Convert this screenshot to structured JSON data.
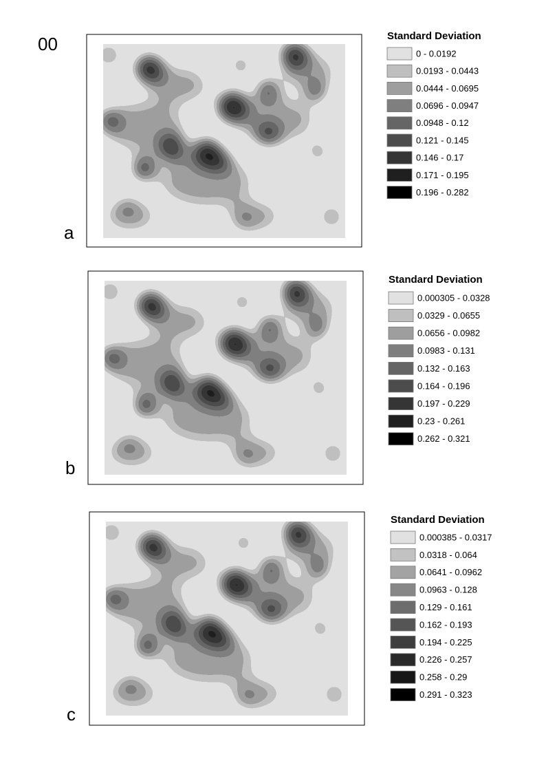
{
  "figure_label": "00",
  "panels": [
    {
      "label": "a",
      "legend_title": "Standard Deviation",
      "legend_items": [
        "0 - 0.0192",
        "0.0193 - 0.0443",
        "0.0444 - 0.0695",
        "0.0696 - 0.0947",
        "0.0948 - 0.12",
        "0.121 - 0.145",
        "0.146 - 0.17",
        "0.171 - 0.195",
        "0.196 - 0.282"
      ],
      "legend_colors": [
        "#e1e1e1",
        "#bfbfbf",
        "#9e9e9e",
        "#7f7f7f",
        "#656565",
        "#4c4c4c",
        "#353535",
        "#1f1f1f",
        "#000000"
      ]
    },
    {
      "label": "b",
      "legend_title": "Standard Deviation",
      "legend_items": [
        "0.000305 - 0.0328",
        "0.0329 - 0.0655",
        "0.0656 - 0.0982",
        "0.0983 - 0.131",
        "0.132 - 0.163",
        "0.164 - 0.196",
        "0.197 - 0.229",
        "0.23 - 0.261",
        "0.262 - 0.321"
      ],
      "legend_colors": [
        "#e1e1e1",
        "#bfbfbf",
        "#9e9e9e",
        "#7f7f7f",
        "#656565",
        "#4c4c4c",
        "#353535",
        "#1f1f1f",
        "#000000"
      ]
    },
    {
      "label": "c",
      "legend_title": "Standard Deviation",
      "legend_items": [
        "0.000385 - 0.0317",
        "0.0318 - 0.064",
        "0.0641 - 0.0962",
        "0.0963 - 0.128",
        "0.129 - 0.161",
        "0.162 - 0.193",
        "0.194 - 0.225",
        "0.226 - 0.257",
        "0.258 - 0.29",
        "0.291 - 0.323"
      ],
      "legend_colors": [
        "#e1e1e1",
        "#c2c2c2",
        "#a3a3a3",
        "#878787",
        "#6d6d6d",
        "#555555",
        "#3e3e3e",
        "#2a2a2a",
        "#171717",
        "#000000"
      ]
    }
  ]
}
